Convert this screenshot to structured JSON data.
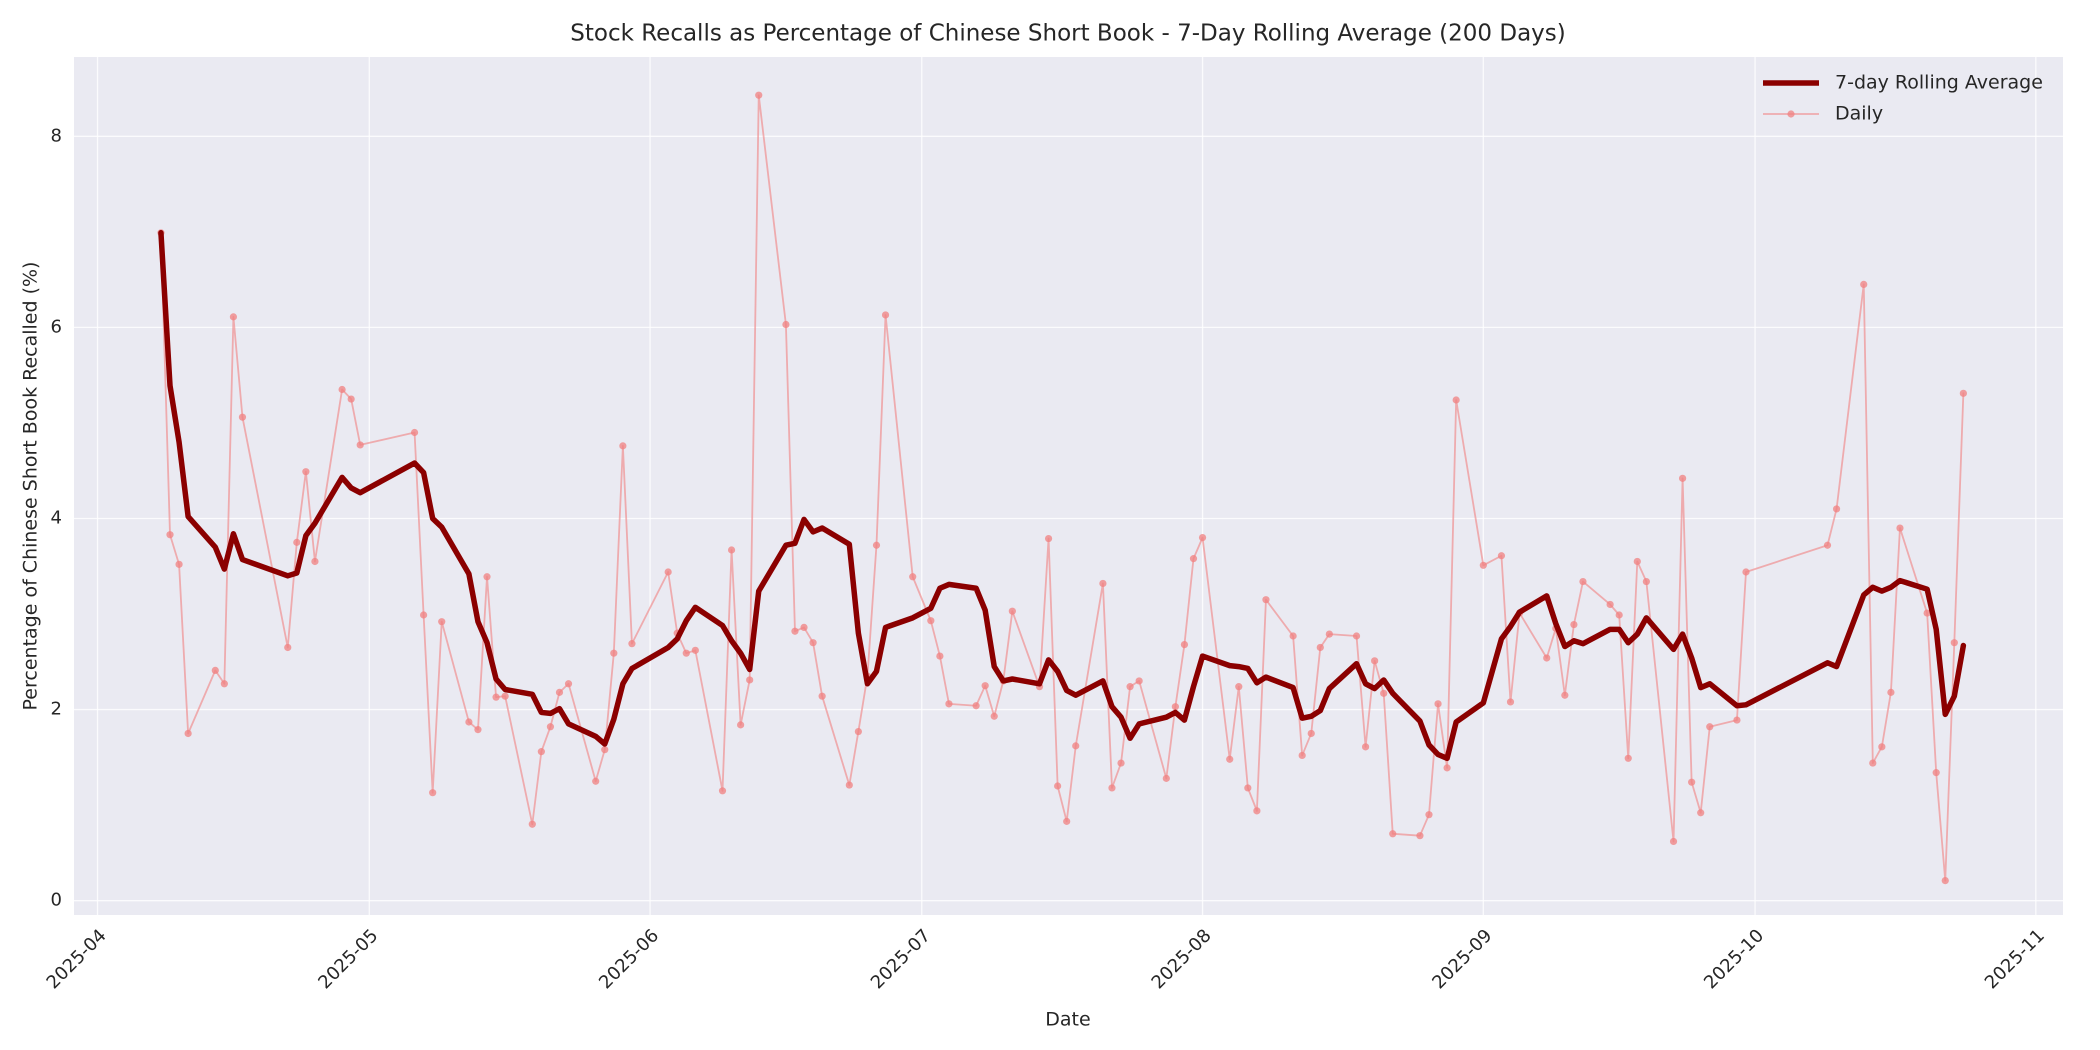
{
  "chart_data": {
    "type": "line",
    "title": "Stock Recalls as Percentage of Chinese Short Book - 7-Day Rolling Average (200 Days)",
    "x_label": "Date",
    "y_label": "Percentage of Chinese Short Book Recalled (%)",
    "x": [
      7,
      8,
      9,
      10,
      13,
      14,
      15,
      16,
      21,
      22,
      23,
      24,
      27,
      28,
      29,
      35,
      36,
      37,
      38,
      41,
      42,
      43,
      44,
      45,
      48,
      49,
      50,
      51,
      52,
      55,
      56,
      57,
      58,
      59,
      63,
      64,
      65,
      66,
      69,
      70,
      71,
      72,
      73,
      76,
      77,
      78,
      79,
      80,
      83,
      84,
      85,
      86,
      87,
      90,
      92,
      93,
      94,
      97,
      98,
      99,
      100,
      101,
      104,
      105,
      106,
      107,
      108,
      111,
      112,
      113,
      114,
      115,
      118,
      119,
      120,
      121,
      122,
      125,
      126,
      127,
      128,
      129,
      132,
      133,
      134,
      135,
      136,
      139,
      140,
      141,
      142,
      143,
      146,
      147,
      148,
      149,
      150,
      153,
      155,
      156,
      157,
      160,
      161,
      162,
      163,
      164,
      167,
      168,
      169,
      170,
      171,
      174,
      175,
      176,
      177,
      178,
      181,
      182,
      191,
      192,
      195,
      196,
      197,
      198,
      199,
      202,
      203,
      204,
      205,
      206
    ],
    "series": [
      {
        "name": "7-day Rolling Average",
        "color": "#8b0000",
        "values": [
          6.99,
          5.39,
          4.8,
          4.02,
          3.7,
          3.47,
          3.84,
          3.57,
          3.4,
          3.43,
          3.82,
          3.95,
          4.43,
          4.32,
          4.27,
          4.58,
          4.48,
          4.0,
          3.91,
          3.42,
          2.92,
          2.7,
          2.32,
          2.21,
          2.16,
          1.97,
          1.96,
          2.01,
          1.85,
          1.72,
          1.64,
          1.9,
          2.27,
          2.43,
          2.65,
          2.74,
          2.93,
          3.07,
          2.88,
          2.72,
          2.59,
          2.42,
          3.24,
          3.72,
          3.74,
          3.99,
          3.86,
          3.9,
          3.73,
          2.8,
          2.27,
          2.4,
          2.86,
          2.96,
          3.06,
          3.27,
          3.31,
          3.27,
          3.04,
          2.45,
          2.3,
          2.32,
          2.27,
          2.52,
          2.4,
          2.2,
          2.15,
          2.3,
          2.03,
          1.92,
          1.7,
          1.85,
          1.92,
          1.97,
          1.89,
          2.24,
          2.56,
          2.46,
          2.45,
          2.43,
          2.28,
          2.34,
          2.23,
          1.91,
          1.93,
          1.99,
          2.22,
          2.48,
          2.27,
          2.22,
          2.31,
          2.17,
          1.88,
          1.63,
          1.53,
          1.49,
          1.87,
          2.07,
          2.74,
          2.87,
          3.02,
          3.19,
          2.9,
          2.66,
          2.72,
          2.69,
          2.84,
          2.84,
          2.7,
          2.79,
          2.96,
          2.63,
          2.79,
          2.54,
          2.23,
          2.27,
          2.04,
          2.05,
          2.49,
          2.45,
          3.2,
          3.28,
          3.24,
          3.28,
          3.35,
          3.26,
          2.84,
          1.95,
          2.14,
          2.67
        ]
      },
      {
        "name": "Daily",
        "color": "#f08080",
        "markers": true,
        "values": [
          6.99,
          3.83,
          3.52,
          1.75,
          2.41,
          2.27,
          6.11,
          5.06,
          2.65,
          3.75,
          4.49,
          3.55,
          5.35,
          5.25,
          4.77,
          4.9,
          2.99,
          1.13,
          2.92,
          1.87,
          1.79,
          3.39,
          2.13,
          2.14,
          0.8,
          1.56,
          1.82,
          2.18,
          2.27,
          1.25,
          1.58,
          2.59,
          4.76,
          2.69,
          3.44,
          2.8,
          2.59,
          2.62,
          1.15,
          3.67,
          1.84,
          2.31,
          8.43,
          6.03,
          2.82,
          2.86,
          2.7,
          2.14,
          1.21,
          1.77,
          2.35,
          3.72,
          6.13,
          3.39,
          2.93,
          2.56,
          2.06,
          2.04,
          2.25,
          1.93,
          2.3,
          3.03,
          2.24,
          3.79,
          1.2,
          0.83,
          1.62,
          3.32,
          1.18,
          1.44,
          2.24,
          2.3,
          1.28,
          2.03,
          2.68,
          3.58,
          3.8,
          1.48,
          2.24,
          1.18,
          0.94,
          3.15,
          2.77,
          1.52,
          1.75,
          2.65,
          2.79,
          2.77,
          1.61,
          2.51,
          2.17,
          0.7,
          0.68,
          0.9,
          2.06,
          1.39,
          5.24,
          3.51,
          3.61,
          2.08,
          3.01,
          2.54,
          2.85,
          2.15,
          2.89,
          3.34,
          3.1,
          2.99,
          1.49,
          3.55,
          3.34,
          0.62,
          4.42,
          1.24,
          0.92,
          1.82,
          1.89,
          3.44,
          3.72,
          4.1,
          6.45,
          1.44,
          1.61,
          2.18,
          3.9,
          3.01,
          1.34,
          0.21,
          2.7,
          5.31
        ]
      }
    ],
    "xlim": [
      -2.6,
      217
    ],
    "xticks": [
      {
        "value": 0,
        "label": "2025-04"
      },
      {
        "value": 30,
        "label": "2025-05"
      },
      {
        "value": 61,
        "label": "2025-06"
      },
      {
        "value": 91,
        "label": "2025-07"
      },
      {
        "value": 122,
        "label": "2025-08"
      },
      {
        "value": 153,
        "label": "2025-09"
      },
      {
        "value": 183,
        "label": "2025-10"
      },
      {
        "value": 214,
        "label": "2025-11"
      }
    ],
    "ylim": [
      -0.15,
      8.83
    ],
    "yticks": [
      0,
      2,
      4,
      6,
      8
    ],
    "grid": true,
    "legend": "upper right"
  }
}
